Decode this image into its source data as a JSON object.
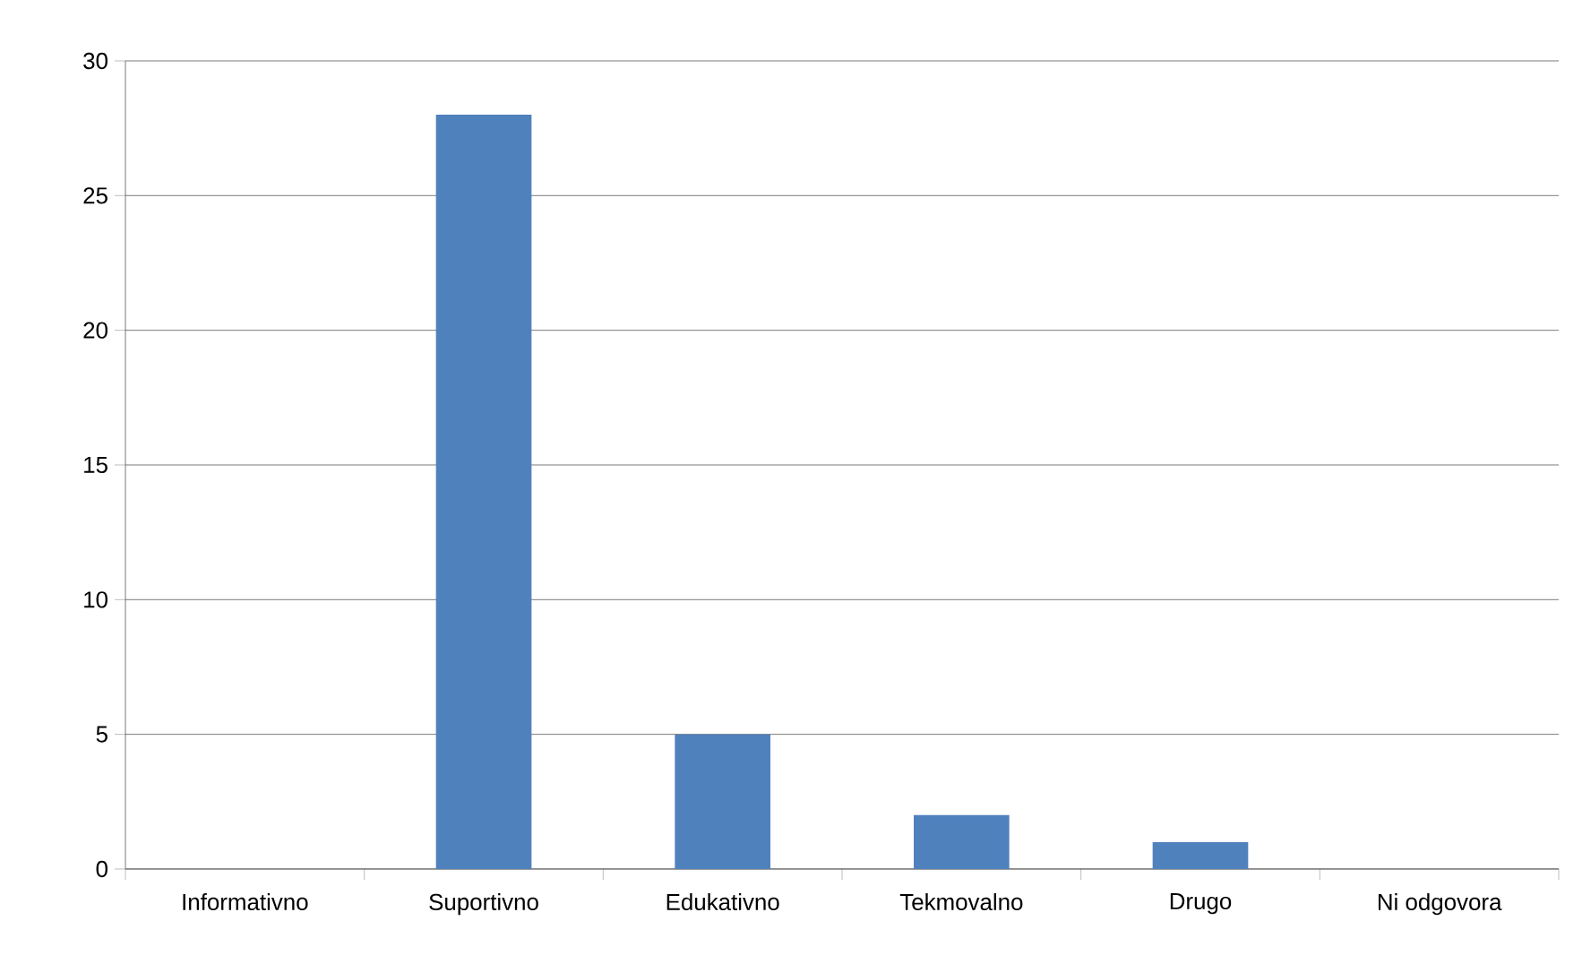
{
  "chart_data": {
    "type": "bar",
    "categories": [
      "Informativno",
      "Suportivno",
      "Edukativno",
      "Tekmovalno",
      "Drugo",
      "Ni odgovora"
    ],
    "values": [
      0,
      28,
      5,
      2,
      1,
      0
    ],
    "color": "#4f81bd",
    "ylim": [
      0,
      30
    ],
    "yticks": [
      0,
      5,
      10,
      15,
      20,
      25,
      30
    ],
    "grid": "y"
  }
}
